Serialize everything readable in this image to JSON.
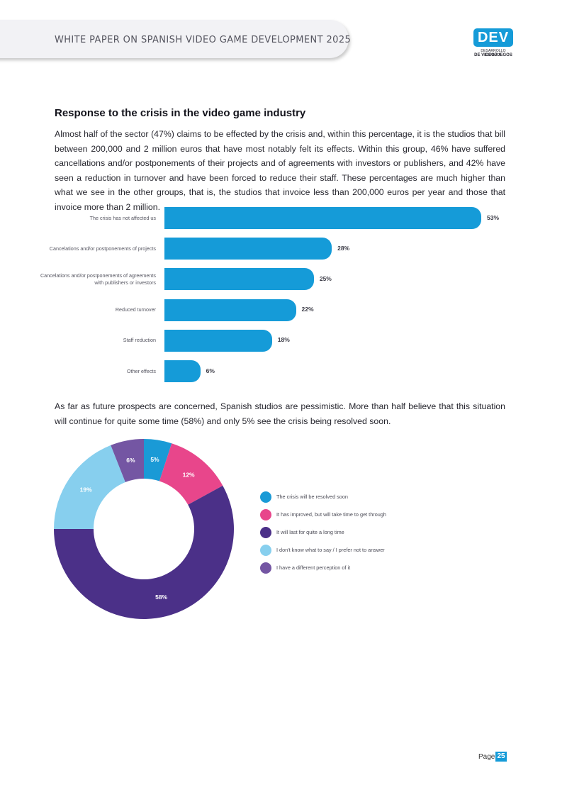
{
  "header": {
    "title": "WHITE PAPER ON SPANISH VIDEO GAME DEVELOPMENT 2025",
    "logo_text": "DEV",
    "logo_sub1": "DESARROLLO ESPAÑOL",
    "logo_sub2": "DE VIDEOJUEGOS"
  },
  "section": {
    "title": "Response to the crisis in the video game industry",
    "para1": "Almost half of the sector (47%) claims to be effected by the crisis and, within this percentage, it is the studios that bill between 200,000 and 2 million euros that have most notably felt its effects. Within this group, 46% have suffered cancellations and/or postponements of their projects and of agreements with investors or publishers, and 42% have seen a reduction in turnover and have been forced to reduce their staff. These percentages are much higher than what we see in the other groups, that is, the studios that invoice less than 200,000 euros per year and those that invoice more than 2 million.",
    "para2": "As far as future prospects are concerned, Spanish studios are pessimistic. More than half believe that this situation will continue for quite some time (58%) and only 5% see the crisis being resolved soon."
  },
  "chart_data": [
    {
      "type": "bar",
      "orientation": "horizontal",
      "categories": [
        "The crisis has not affected us",
        "Cancelations and/or postponements of projects",
        "Cancelations and/or postponements of agreements with publishers or investors",
        "Reduced turnover",
        "Staff reduction",
        "Other effects"
      ],
      "values": [
        53,
        28,
        25,
        22,
        18,
        6
      ],
      "labels": [
        "53%",
        "28%",
        "25%",
        "22%",
        "18%",
        "6%"
      ],
      "color": "#159bd8",
      "xlim": [
        0,
        53
      ],
      "grid": false
    },
    {
      "type": "pie",
      "style": "donut",
      "legend": "right",
      "slices": [
        {
          "label": "The crisis will be resolved soon",
          "value": 5,
          "text": "5%",
          "color": "#1a9ad6"
        },
        {
          "label": "It has improved, but will take time to get through",
          "value": 12,
          "text": "12%",
          "color": "#e8468b"
        },
        {
          "label": "It will last for quite a long time",
          "value": 58,
          "text": "58%",
          "color": "#4b3088"
        },
        {
          "label": "I don't know what to say / I prefer not to answer",
          "value": 19,
          "text": "19%",
          "color": "#87cfee"
        },
        {
          "label": "I have a different perception of it",
          "value": 6,
          "text": "6%",
          "color": "#7456a3"
        }
      ]
    }
  ],
  "footer": {
    "page_label": "Page",
    "page_number": "25"
  }
}
